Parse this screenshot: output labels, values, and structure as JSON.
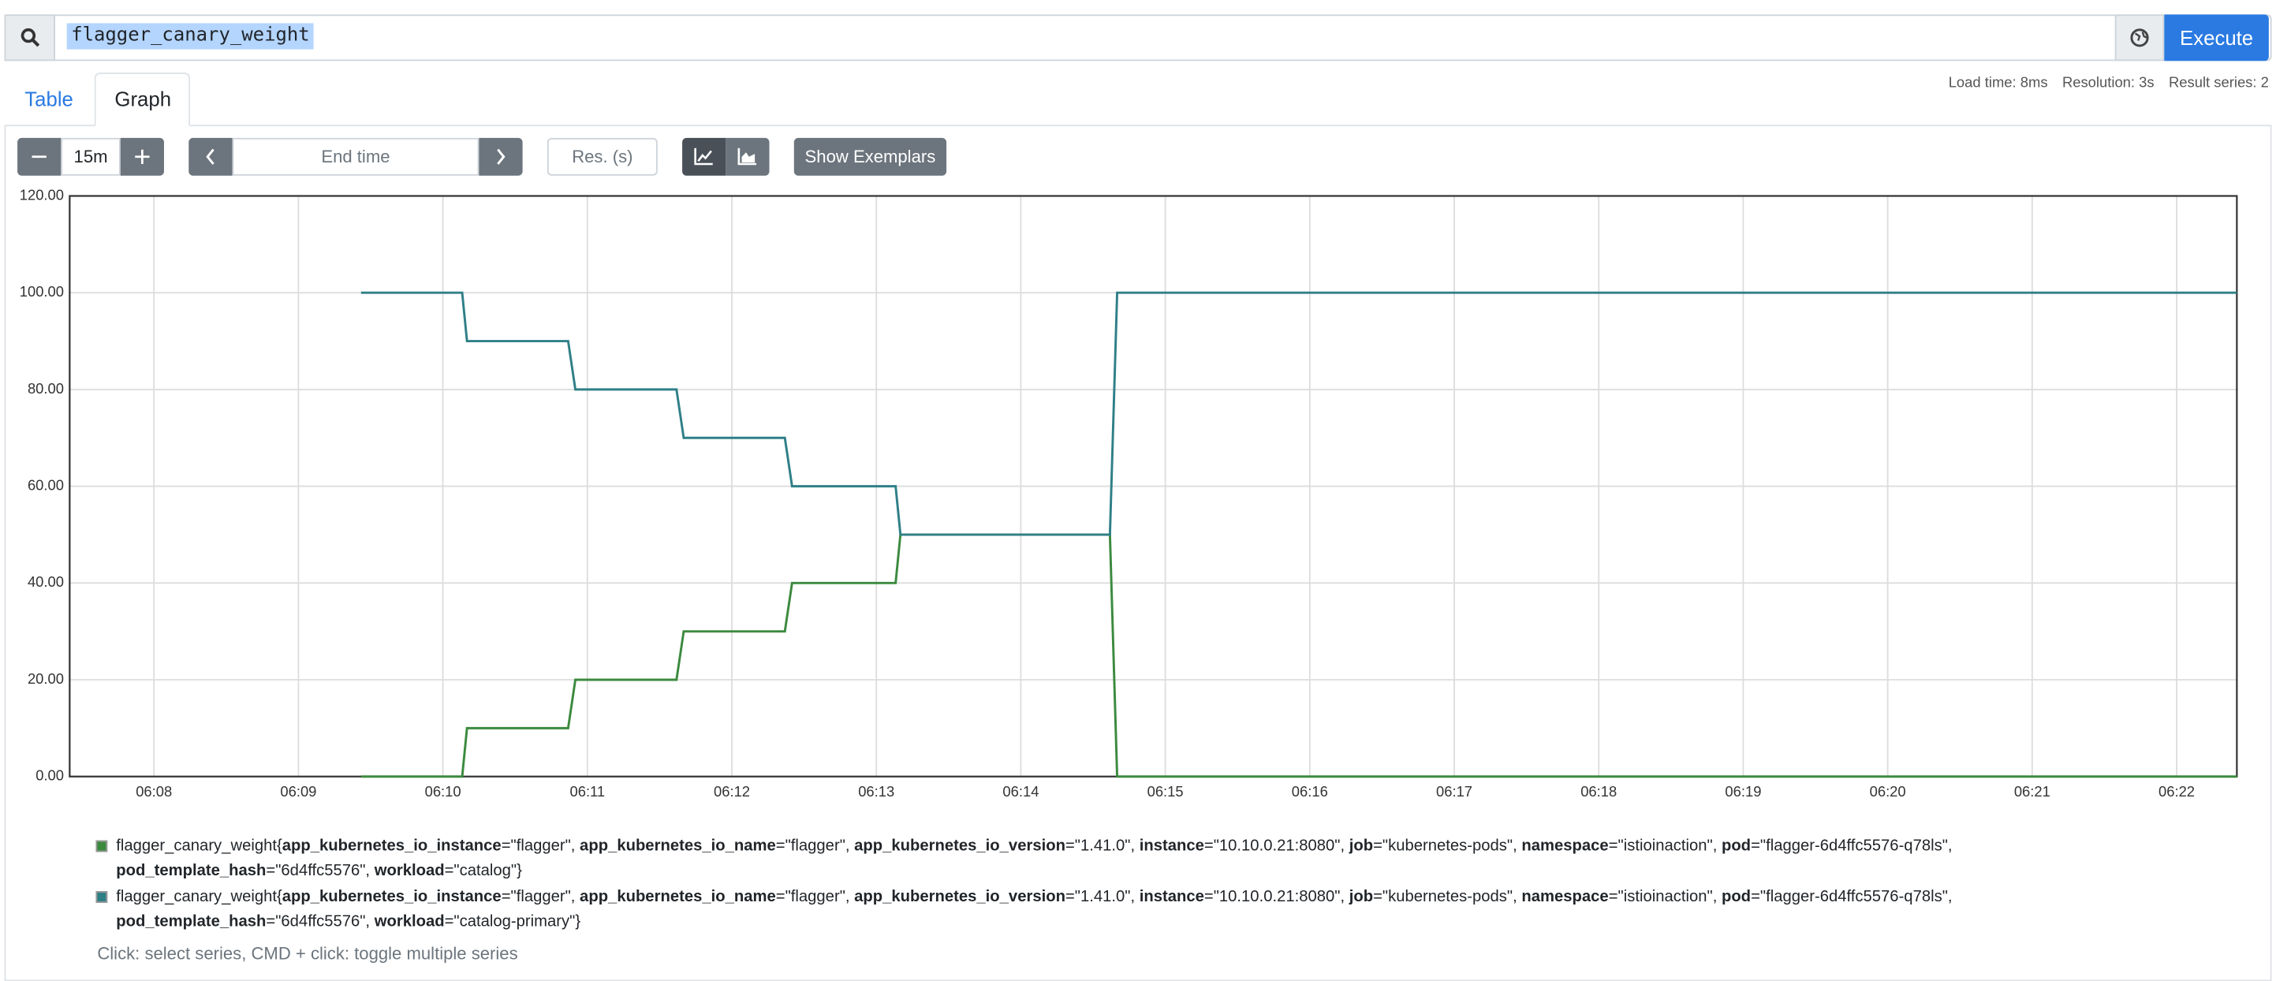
{
  "ui": {
    "query": "flagger_canary_weight",
    "execute": "Execute",
    "tabs": [
      "Table",
      "Graph"
    ],
    "stats": [
      "Load time: 8ms",
      "Resolution: 3s",
      "Result series: 2"
    ],
    "range": "15m",
    "end_time": "End time",
    "resolution": "Res. (s)",
    "exemplars": "Show Exemplars",
    "hint": "Click: select series, CMD + click: toggle multiple series"
  },
  "chart_data": {
    "type": "line",
    "grid": true,
    "xlim": [
      "06:07:25",
      "06:22:25"
    ],
    "xticks": [
      {
        "value": "06:08:00",
        "label": "06:08"
      },
      {
        "value": "06:09:00",
        "label": "06:09"
      },
      {
        "value": "06:10:00",
        "label": "06:10"
      },
      {
        "value": "06:11:00",
        "label": "06:11"
      },
      {
        "value": "06:12:00",
        "label": "06:12"
      },
      {
        "value": "06:13:00",
        "label": "06:13"
      },
      {
        "value": "06:14:00",
        "label": "06:14"
      },
      {
        "value": "06:15:00",
        "label": "06:15"
      },
      {
        "value": "06:16:00",
        "label": "06:16"
      },
      {
        "value": "06:17:00",
        "label": "06:17"
      },
      {
        "value": "06:18:00",
        "label": "06:18"
      },
      {
        "value": "06:19:00",
        "label": "06:19"
      },
      {
        "value": "06:20:00",
        "label": "06:20"
      },
      {
        "value": "06:21:00",
        "label": "06:21"
      },
      {
        "value": "06:22:00",
        "label": "06:22"
      }
    ],
    "ylim": [
      0,
      120
    ],
    "yticks": [
      {
        "value": 0,
        "label": "0.00"
      },
      {
        "value": 20,
        "label": "20.00"
      },
      {
        "value": 40,
        "label": "40.00"
      },
      {
        "value": 60,
        "label": "60.00"
      },
      {
        "value": 80,
        "label": "80.00"
      },
      {
        "value": 100,
        "label": "100.00"
      },
      {
        "value": 120,
        "label": "120.00"
      }
    ],
    "x": [
      "06:09:26",
      "06:10:08",
      "06:10:10",
      "06:10:52",
      "06:10:55",
      "06:11:37",
      "06:11:40",
      "06:12:22",
      "06:12:25",
      "06:13:08",
      "06:13:10",
      "06:14:37",
      "06:14:40",
      "06:22:25"
    ],
    "series": [
      {
        "name": "flagger_canary_weight{app_kubernetes_io_instance=\"flagger\", app_kubernetes_io_name=\"flagger\", app_kubernetes_io_version=\"1.41.0\", instance=\"10.10.0.21:8080\", job=\"kubernetes-pods\", namespace=\"istioinaction\", pod=\"flagger-6d4ffc5576-q78ls\", pod_template_hash=\"6d4ffc5576\", workload=\"catalog\"}",
        "color": "#3b8a3e",
        "values": [
          0,
          0,
          10,
          10,
          20,
          20,
          30,
          30,
          40,
          40,
          50,
          50,
          0,
          0
        ]
      },
      {
        "name": "flagger_canary_weight{app_kubernetes_io_instance=\"flagger\", app_kubernetes_io_name=\"flagger\", app_kubernetes_io_version=\"1.41.0\", instance=\"10.10.0.21:8080\", job=\"kubernetes-pods\", namespace=\"istioinaction\", pod=\"flagger-6d4ffc5576-q78ls\", pod_template_hash=\"6d4ffc5576\", workload=\"catalog-primary\"}",
        "color": "#2f7f87",
        "values": [
          100,
          100,
          90,
          90,
          80,
          80,
          70,
          70,
          60,
          60,
          50,
          50,
          100,
          100
        ]
      }
    ]
  }
}
